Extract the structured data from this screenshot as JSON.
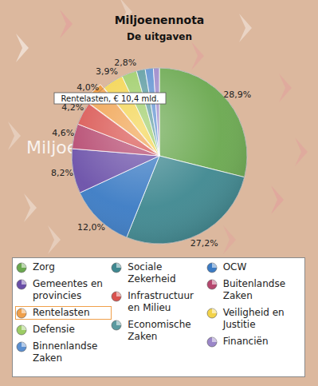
{
  "chart_data": {
    "type": "pie",
    "title": "Miljoenennota",
    "subtitle": "De uitgaven",
    "watermark": "Miljoenennota",
    "annotation": "Rentelasten, € 10,4 mld.",
    "categories": [
      "Zorg",
      "Sociale Zekerheid",
      "OCW",
      "Gemeentes en provincies",
      "Buitenlandse Zaken",
      "Infrastructuur en Milieu",
      "Rentelasten",
      "Veiligheid en Justitie",
      "Defensie",
      "Economische Zaken",
      "Binnenlandse Zaken",
      "Financiën"
    ],
    "values": [
      28.9,
      27.2,
      12.0,
      8.2,
      4.6,
      4.2,
      4.0,
      3.9,
      2.8,
      1.6,
      1.5,
      1.1
    ],
    "value_labels": [
      "28,9%",
      "27,2%",
      "12,0%",
      "8,2%",
      "4,6%",
      "4,2%",
      "4,0%",
      "3,9%",
      "2,8%",
      null,
      null,
      null
    ],
    "colors": [
      "#6aa84f",
      "#3f8890",
      "#3b7bc4",
      "#6a4fa8",
      "#b5476e",
      "#d9534f",
      "#f0a04b",
      "#f3d34a",
      "#9ccc65",
      "#5b9aa0",
      "#5b8fd0",
      "#9a86c8"
    ],
    "data_labels": true,
    "legend": "bottom"
  }
}
